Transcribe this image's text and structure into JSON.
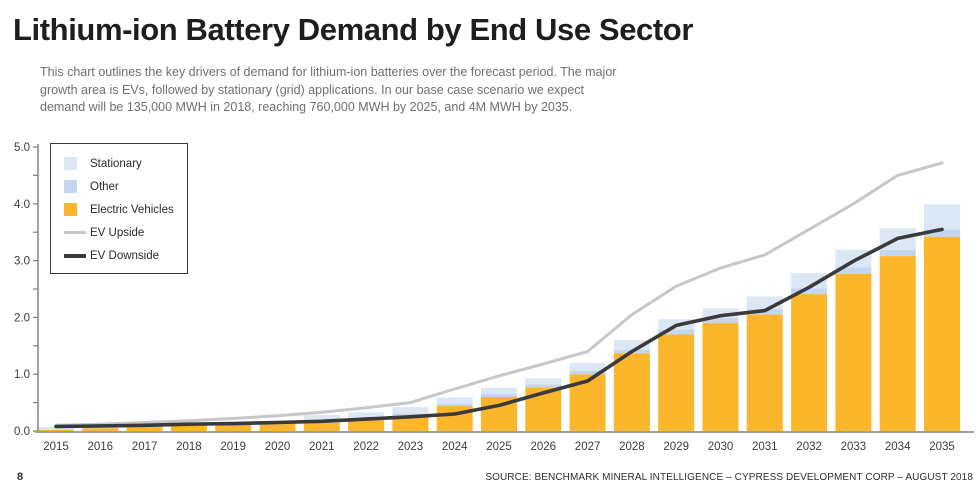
{
  "page": {
    "title": "Lithium-ion Battery Demand by End Use Sector",
    "subtitle_lines": [
      "This chart outlines the key drivers of demand for lithium-ion batteries over the forecast period. The major",
      "growth area is EVs, followed by stationary (grid) applications. In our base case scenario we expect",
      "demand will be 135,000 MWH in 2018, reaching 760,000 MWH by 2025, and 4M MWH by 2035."
    ],
    "page_number": "8",
    "source": "SOURCE: BENCHMARK MINERAL INTELLIGENCE – CYPRESS DEVELOPMENT CORP – AUGUST 2018"
  },
  "chart_data": {
    "type": "bar",
    "stacked": true,
    "units": "M MWH",
    "categories": [
      "2015",
      "2016",
      "2017",
      "2018",
      "2019",
      "2020",
      "2021",
      "2022",
      "2023",
      "2024",
      "2025",
      "2026",
      "2027",
      "2028",
      "2029",
      "2030",
      "2031",
      "2032",
      "2033",
      "2034",
      "2035"
    ],
    "series": [
      {
        "name": "Electric Vehicles",
        "type": "bar",
        "color": "#FBB62B",
        "values": [
          0.02,
          0.05,
          0.07,
          0.09,
          0.11,
          0.13,
          0.14,
          0.19,
          0.27,
          0.44,
          0.6,
          0.77,
          1.0,
          1.37,
          1.7,
          1.9,
          2.05,
          2.41,
          2.77,
          3.08,
          3.42
        ]
      },
      {
        "name": "Other",
        "type": "bar",
        "color": "#C3D6EE",
        "values": [
          0.01,
          0.01,
          0.01,
          0.02,
          0.02,
          0.02,
          0.04,
          0.04,
          0.04,
          0.04,
          0.05,
          0.05,
          0.06,
          0.06,
          0.09,
          0.09,
          0.1,
          0.1,
          0.11,
          0.11,
          0.13
        ]
      },
      {
        "name": "Stationary",
        "type": "bar",
        "color": "#DBE7F4",
        "values": [
          0.04,
          0.02,
          0.02,
          0.03,
          0.02,
          0.02,
          0.1,
          0.1,
          0.11,
          0.11,
          0.11,
          0.11,
          0.14,
          0.17,
          0.18,
          0.17,
          0.22,
          0.27,
          0.31,
          0.38,
          0.44
        ]
      },
      {
        "name": "EV Upside",
        "type": "line",
        "color": "#C7C7C7",
        "values": [
          0.1,
          0.12,
          0.15,
          0.18,
          0.22,
          0.27,
          0.33,
          0.41,
          0.5,
          0.74,
          0.97,
          1.18,
          1.4,
          2.05,
          2.55,
          2.87,
          3.1,
          3.55,
          4.0,
          4.5,
          4.72
        ]
      },
      {
        "name": "EV Downside",
        "type": "line",
        "color": "#3A3A3A",
        "values": [
          0.08,
          0.09,
          0.1,
          0.12,
          0.13,
          0.15,
          0.17,
          0.21,
          0.25,
          0.3,
          0.45,
          0.67,
          0.88,
          1.4,
          1.86,
          2.03,
          2.12,
          2.53,
          2.99,
          3.39,
          3.55
        ]
      }
    ],
    "title": "",
    "xlabel": "",
    "ylabel": "",
    "ylim": [
      0,
      5.0
    ],
    "y_ticks": [
      "0.0",
      "1.0",
      "2.0",
      "3.0",
      "4.0",
      "5.0"
    ],
    "grid": false,
    "legend_position": "top-left",
    "legend_order": [
      "Stationary",
      "Other",
      "Electric Vehicles",
      "EV Upside",
      "EV Downside"
    ]
  }
}
